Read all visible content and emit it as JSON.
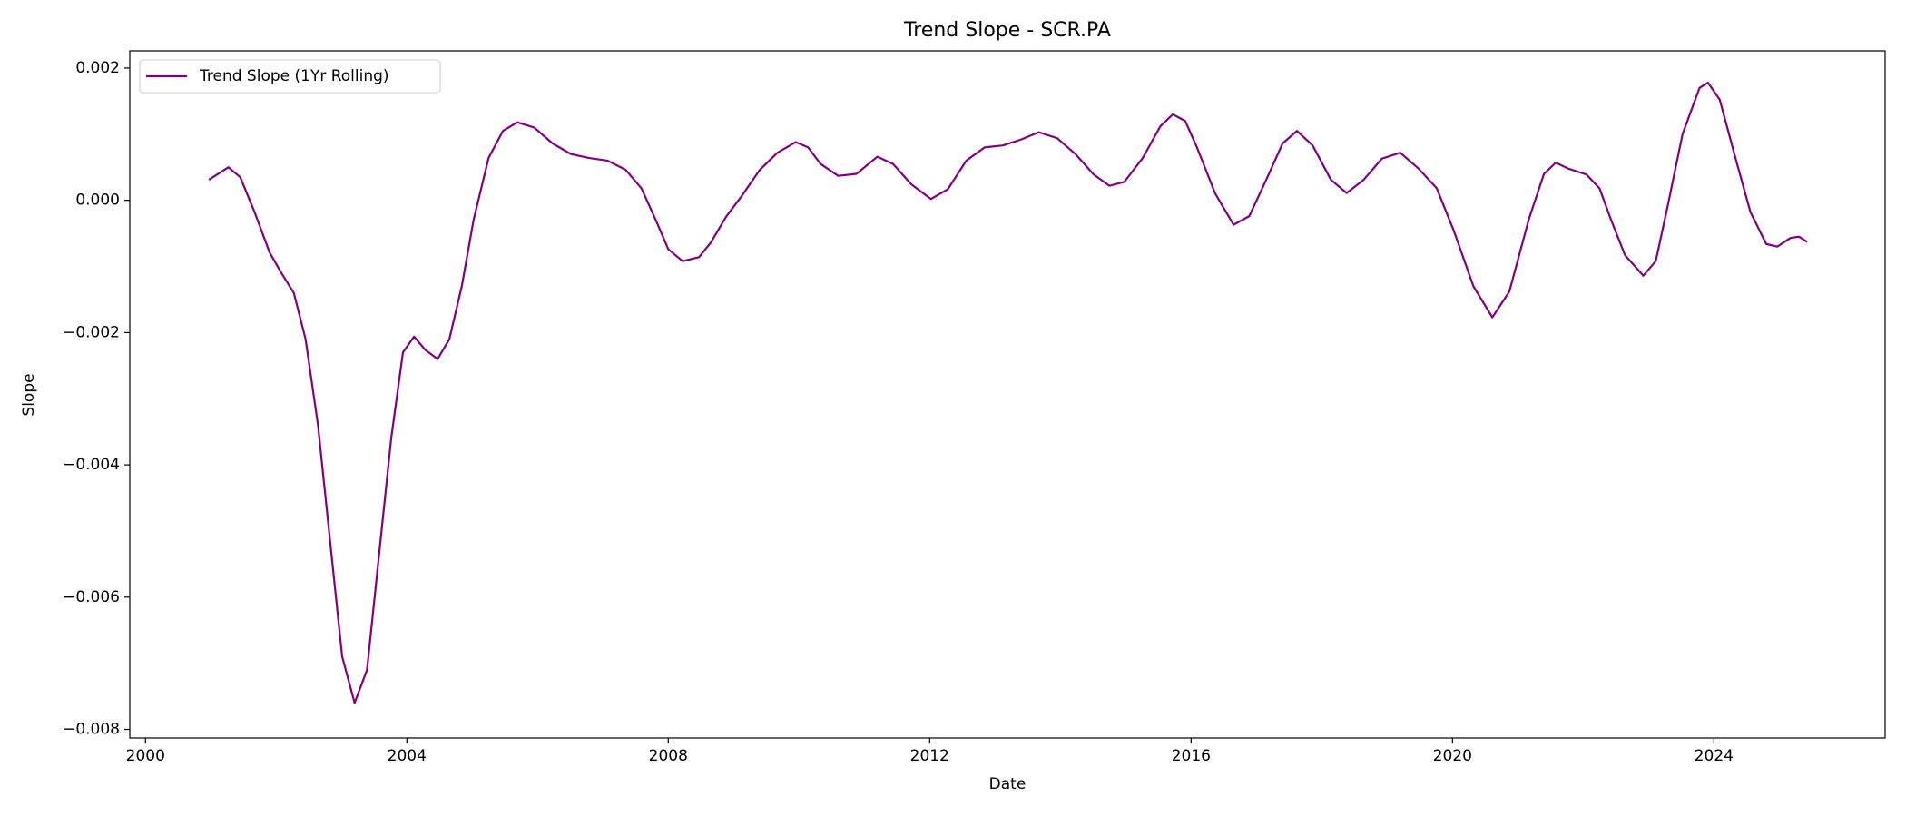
{
  "chart_data": {
    "type": "line",
    "title": "Trend Slope - SCR.PA",
    "xlabel": "Date",
    "ylabel": "Slope",
    "x": [
      2000.97,
      2001.27,
      2001.45,
      2001.67,
      2001.9,
      2002.08,
      2002.27,
      2002.45,
      2002.64,
      2002.83,
      2003.01,
      2003.2,
      2003.39,
      2003.57,
      2003.76,
      2003.94,
      2004.11,
      2004.28,
      2004.47,
      2004.65,
      2004.84,
      2005.02,
      2005.25,
      2005.47,
      2005.69,
      2005.95,
      2006.23,
      2006.51,
      2006.79,
      2007.07,
      2007.35,
      2007.59,
      2007.81,
      2008.0,
      2008.22,
      2008.47,
      2008.65,
      2008.89,
      2009.12,
      2009.4,
      2009.67,
      2009.95,
      2010.14,
      2010.33,
      2010.6,
      2010.88,
      2011.2,
      2011.44,
      2011.72,
      2012.02,
      2012.28,
      2012.56,
      2012.84,
      2013.12,
      2013.4,
      2013.67,
      2013.95,
      2014.23,
      2014.51,
      2014.75,
      2014.98,
      2015.26,
      2015.53,
      2015.72,
      2015.91,
      2016.09,
      2016.37,
      2016.65,
      2016.89,
      2017.15,
      2017.4,
      2017.62,
      2017.86,
      2018.14,
      2018.38,
      2018.64,
      2018.92,
      2019.2,
      2019.48,
      2019.76,
      2020.02,
      2020.32,
      2020.61,
      2020.87,
      2021.17,
      2021.4,
      2021.58,
      2021.77,
      2022.05,
      2022.25,
      2022.42,
      2022.64,
      2022.92,
      2023.11,
      2023.29,
      2023.52,
      2023.78,
      2023.91,
      2024.09,
      2024.33,
      2024.56,
      2024.8,
      2024.97,
      2025.17,
      2025.3,
      2025.43
    ],
    "series": [
      {
        "name": "Trend Slope (1Yr Rolling)",
        "color": "#800080",
        "values": [
          0.00031,
          0.0005,
          0.00035,
          -0.00018,
          -0.00079,
          -0.0011,
          -0.0014,
          -0.0021,
          -0.0034,
          -0.0052,
          -0.0069,
          -0.0076,
          -0.0071,
          -0.0054,
          -0.0036,
          -0.0023,
          -0.00206,
          -0.00226,
          -0.0024,
          -0.0021,
          -0.0013,
          -0.0003,
          0.00064,
          0.00105,
          0.00118,
          0.0011,
          0.00086,
          0.0007,
          0.00064,
          0.0006,
          0.00046,
          0.00018,
          -0.0003,
          -0.00074,
          -0.00092,
          -0.00086,
          -0.00064,
          -0.00024,
          6e-05,
          0.00046,
          0.00072,
          0.00088,
          0.0008,
          0.00055,
          0.00037,
          0.0004,
          0.00066,
          0.00055,
          0.00024,
          2e-05,
          0.00017,
          0.0006,
          0.0008,
          0.00083,
          0.00092,
          0.00103,
          0.00094,
          0.0007,
          0.00039,
          0.00022,
          0.00028,
          0.00064,
          0.00112,
          0.0013,
          0.0012,
          0.0008,
          0.0001,
          -0.00037,
          -0.00024,
          0.00031,
          0.00086,
          0.00105,
          0.00083,
          0.00031,
          0.00011,
          0.00031,
          0.00063,
          0.00072,
          0.00048,
          0.00018,
          -0.00046,
          -0.0013,
          -0.00177,
          -0.00138,
          -0.00028,
          0.0004,
          0.00057,
          0.00048,
          0.00039,
          0.00018,
          -0.00028,
          -0.00083,
          -0.00114,
          -0.00092,
          -0.0001,
          0.001,
          0.0017,
          0.00178,
          0.00152,
          0.00064,
          -0.00018,
          -0.00066,
          -0.0007,
          -0.00057,
          -0.00055,
          -0.00063
        ]
      }
    ],
    "xlim": [
      1999.76,
      2026.62
    ],
    "xticks": [
      2000,
      2004,
      2008,
      2012,
      2016,
      2020,
      2024
    ],
    "ylim": [
      -0.00813,
      0.00226
    ],
    "yticks": [
      {
        "value": -0.008,
        "label": "−0.008"
      },
      {
        "value": -0.006,
        "label": "−0.006"
      },
      {
        "value": -0.004,
        "label": "−0.004"
      },
      {
        "value": -0.002,
        "label": "−0.002"
      },
      {
        "value": 0,
        "label": "0.000"
      },
      {
        "value": 0.002,
        "label": "0.002"
      }
    ],
    "legend": "upper left",
    "grid": false
  }
}
